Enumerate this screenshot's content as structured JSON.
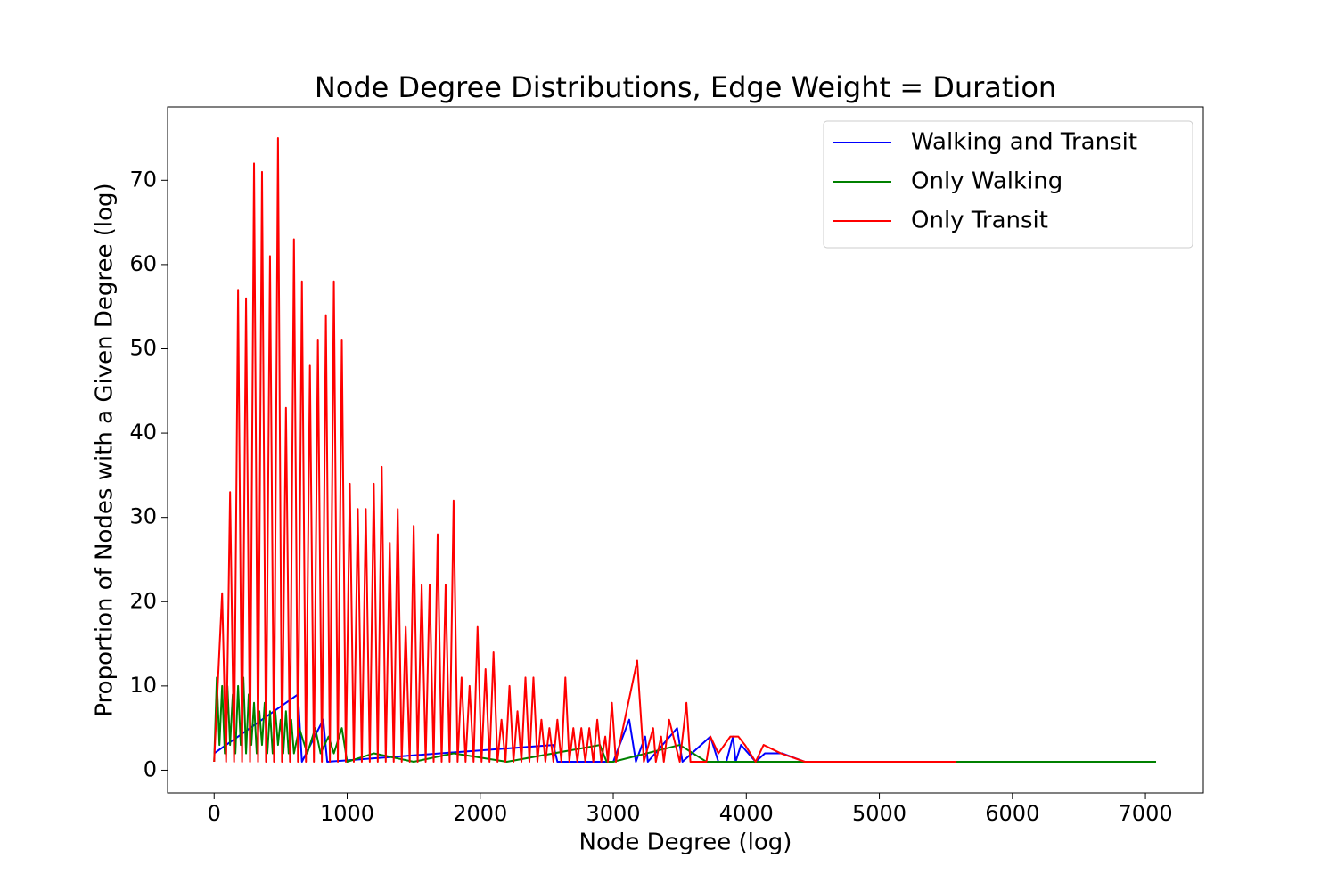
{
  "chart_data": {
    "type": "line",
    "title": "Node Degree Distributions, Edge Weight = Duration",
    "x_label": "Node Degree (log)",
    "y_label": "Proportion of Nodes with a Given Degree (log)",
    "xlim": [
      -350,
      7435
    ],
    "ylim": [
      -2.7,
      78.7
    ],
    "xticks": [
      0,
      1000,
      2000,
      3000,
      4000,
      5000,
      6000,
      7000
    ],
    "yticks": [
      0,
      10,
      20,
      30,
      40,
      50,
      60,
      70
    ],
    "legend": "upper right",
    "series": [
      {
        "name": "Walking and Transit",
        "color": "#0000ff",
        "x": [
          0,
          630,
          660,
          820,
          850,
          2550,
          2580,
          3000,
          3120,
          3170,
          3240,
          3260,
          3480,
          3520,
          3730,
          3790,
          3850,
          3900,
          3920,
          3960,
          4070,
          4140,
          4270,
          4440,
          5580
        ],
        "values": [
          2,
          9,
          1,
          6,
          1,
          3,
          1,
          1,
          6,
          1,
          4,
          1,
          5,
          1,
          4,
          1,
          1,
          4,
          1,
          3,
          1,
          2,
          2,
          1,
          1
        ]
      },
      {
        "name": "Only Walking",
        "color": "#008000",
        "x": [
          0,
          20,
          40,
          60,
          80,
          100,
          120,
          140,
          160,
          180,
          200,
          220,
          240,
          260,
          280,
          300,
          320,
          340,
          360,
          380,
          400,
          420,
          440,
          460,
          480,
          500,
          520,
          540,
          560,
          580,
          600,
          640,
          700,
          760,
          800,
          860,
          900,
          960,
          1000,
          1200,
          1500,
          1800,
          2200,
          2900,
          2950,
          3000,
          3500,
          3700,
          5000,
          7080
        ],
        "values": [
          1,
          11,
          3,
          10,
          2,
          10,
          3,
          9,
          2,
          10,
          3,
          11,
          2,
          9,
          3,
          8,
          2,
          7,
          3,
          8,
          2,
          7,
          2,
          7,
          3,
          6,
          2,
          7,
          2,
          6,
          2,
          5,
          2,
          5,
          2,
          4,
          2,
          5,
          1,
          2,
          1,
          2,
          1,
          3,
          1,
          1,
          3,
          1,
          1,
          1
        ]
      },
      {
        "name": "Only Transit",
        "color": "#ff0000",
        "x": [
          0,
          60,
          90,
          120,
          150,
          180,
          210,
          240,
          270,
          300,
          330,
          360,
          390,
          420,
          450,
          480,
          510,
          540,
          570,
          600,
          630,
          660,
          690,
          720,
          750,
          780,
          810,
          840,
          870,
          900,
          930,
          960,
          990,
          1020,
          1050,
          1080,
          1110,
          1140,
          1170,
          1200,
          1230,
          1260,
          1290,
          1320,
          1350,
          1380,
          1410,
          1440,
          1470,
          1500,
          1530,
          1560,
          1590,
          1620,
          1650,
          1680,
          1710,
          1740,
          1770,
          1800,
          1830,
          1860,
          1890,
          1920,
          1950,
          1980,
          2010,
          2040,
          2070,
          2100,
          2130,
          2160,
          2190,
          2220,
          2250,
          2280,
          2310,
          2340,
          2370,
          2400,
          2430,
          2460,
          2490,
          2520,
          2550,
          2580,
          2610,
          2640,
          2670,
          2700,
          2730,
          2760,
          2790,
          2820,
          2850,
          2880,
          2910,
          2940,
          2960,
          2990,
          3020,
          3180,
          3230,
          3300,
          3320,
          3360,
          3380,
          3420,
          3500,
          3550,
          3580,
          3700,
          3730,
          3790,
          3880,
          3940,
          3990,
          4070,
          4130,
          4260,
          4440,
          5580
        ],
        "values": [
          1,
          21,
          1,
          33,
          1,
          57,
          1,
          56,
          1,
          72,
          1,
          71,
          1,
          61,
          1,
          75,
          1,
          43,
          1,
          63,
          1,
          58,
          1,
          48,
          1,
          51,
          1,
          54,
          1,
          58,
          1,
          51,
          1,
          34,
          1,
          31,
          1,
          31,
          1,
          34,
          1,
          36,
          1,
          27,
          1,
          31,
          1,
          17,
          1,
          29,
          1,
          22,
          1,
          22,
          1,
          28,
          1,
          22,
          1,
          32,
          1,
          11,
          1,
          10,
          1,
          17,
          1,
          12,
          1,
          14,
          1,
          6,
          1,
          10,
          1,
          7,
          1,
          11,
          1,
          11,
          1,
          6,
          1,
          5,
          1,
          6,
          1,
          11,
          1,
          5,
          1,
          5,
          1,
          5,
          1,
          6,
          1,
          4,
          1,
          8,
          1,
          13,
          1,
          5,
          1,
          4,
          1,
          6,
          1,
          8,
          1,
          1,
          4,
          2,
          4,
          4,
          3,
          1,
          3,
          2,
          1,
          1
        ]
      }
    ]
  }
}
